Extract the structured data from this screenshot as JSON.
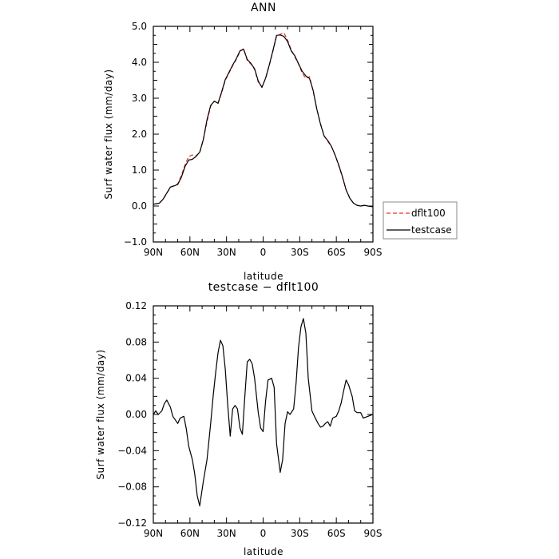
{
  "chart_data": [
    {
      "type": "line",
      "title": "ANN",
      "xlabel": "latitude",
      "ylabel": "Surf water flux (mm/day)",
      "xlim": [
        90,
        -90
      ],
      "ylim": [
        -1.0,
        5.0
      ],
      "xticks": [
        90,
        60,
        30,
        0,
        -30,
        -60,
        -90
      ],
      "xtick_labels": [
        "90N",
        "60N",
        "30N",
        "0",
        "30S",
        "60S",
        "90S"
      ],
      "yticks": [
        -1.0,
        0.0,
        1.0,
        2.0,
        3.0,
        4.0,
        5.0
      ],
      "ytick_labels": [
        "−1.0",
        "0.0",
        "1.0",
        "2.0",
        "3.0",
        "4.0",
        "5.0"
      ],
      "grid": false,
      "legend_position": "right",
      "series": [
        {
          "name": "dflt100",
          "color": "#e8302a",
          "dash": "dashed",
          "x": [
            90,
            85,
            82,
            79,
            76,
            73,
            70,
            67,
            64,
            61,
            58,
            55,
            52,
            49,
            46,
            43,
            40,
            37,
            34,
            31,
            28,
            25,
            22,
            19,
            16,
            13,
            10,
            7,
            4,
            1,
            -2,
            -5,
            -8,
            -11,
            -14,
            -17,
            -20,
            -23,
            -26,
            -29,
            -32,
            -35,
            -38,
            -41,
            -44,
            -47,
            -50,
            -53,
            -56,
            -59,
            -62,
            -65,
            -68,
            -71,
            -74,
            -77,
            -80,
            -83,
            -86,
            -90
          ],
          "y": [
            0.05,
            0.08,
            0.18,
            0.35,
            0.52,
            0.57,
            0.62,
            0.85,
            1.15,
            1.38,
            1.42,
            1.4,
            1.48,
            1.85,
            2.35,
            2.78,
            2.92,
            2.85,
            3.15,
            3.5,
            3.7,
            3.9,
            4.08,
            4.3,
            4.38,
            4.05,
            3.95,
            3.8,
            3.45,
            3.32,
            3.55,
            3.9,
            4.3,
            4.72,
            4.78,
            4.82,
            4.62,
            4.35,
            4.15,
            3.95,
            3.7,
            3.55,
            3.6,
            3.2,
            2.7,
            2.3,
            1.95,
            1.8,
            1.65,
            1.42,
            1.12,
            0.8,
            0.45,
            0.22,
            0.08,
            0.02,
            0.0,
            0.02,
            0.0,
            -0.02
          ]
        },
        {
          "name": "testcase",
          "color": "#000000",
          "dash": "solid",
          "x": [
            90,
            85,
            82,
            79,
            76,
            73,
            70,
            67,
            64,
            61,
            58,
            55,
            52,
            49,
            46,
            43,
            40,
            37,
            34,
            31,
            28,
            25,
            22,
            19,
            16,
            13,
            10,
            7,
            4,
            1,
            -2,
            -5,
            -8,
            -11,
            -14,
            -17,
            -20,
            -23,
            -26,
            -29,
            -32,
            -35,
            -38,
            -41,
            -44,
            -47,
            -50,
            -53,
            -56,
            -59,
            -62,
            -65,
            -68,
            -71,
            -74,
            -77,
            -80,
            -83,
            -86,
            -90
          ],
          "y": [
            0.05,
            0.08,
            0.19,
            0.36,
            0.53,
            0.56,
            0.6,
            0.8,
            1.1,
            1.28,
            1.3,
            1.38,
            1.5,
            1.85,
            2.4,
            2.8,
            2.92,
            2.86,
            3.18,
            3.52,
            3.72,
            3.92,
            4.1,
            4.32,
            4.36,
            4.08,
            3.97,
            3.82,
            3.48,
            3.3,
            3.56,
            3.92,
            4.32,
            4.75,
            4.76,
            4.72,
            4.58,
            4.32,
            4.18,
            3.96,
            3.75,
            3.62,
            3.55,
            3.22,
            2.7,
            2.28,
            1.95,
            1.82,
            1.66,
            1.42,
            1.14,
            0.82,
            0.45,
            0.22,
            0.08,
            0.02,
            0.0,
            0.02,
            0.0,
            -0.02
          ]
        }
      ]
    },
    {
      "type": "line",
      "title": "testcase − dflt100",
      "xlabel": "latitude",
      "ylabel": "Surf water flux (mm/day)",
      "xlim": [
        90,
        -90
      ],
      "ylim": [
        -0.12,
        0.12
      ],
      "xticks": [
        90,
        60,
        30,
        0,
        -30,
        -60,
        -90
      ],
      "xtick_labels": [
        "90N",
        "60N",
        "30N",
        "0",
        "30S",
        "60S",
        "90S"
      ],
      "yticks": [
        -0.12,
        -0.08,
        -0.04,
        0.0,
        0.04,
        0.08,
        0.12
      ],
      "ytick_labels": [
        "−0.12",
        "−0.08",
        "−0.04",
        "0.00",
        "0.04",
        "0.08",
        "0.12"
      ],
      "grid": false,
      "series": [
        {
          "color": "#000000",
          "dash": "solid",
          "x": [
            90,
            88,
            86,
            83,
            81,
            79,
            76,
            74,
            72,
            70,
            68,
            65,
            63,
            61,
            58,
            56,
            54,
            52,
            49,
            46,
            43,
            41,
            39,
            37,
            35,
            33,
            31,
            29,
            27,
            25,
            23,
            21,
            19,
            17,
            15,
            13,
            11,
            9,
            7,
            4,
            2,
            0,
            -2,
            -4,
            -7,
            -9,
            -11,
            -14,
            -16,
            -18,
            -20,
            -22,
            -25,
            -27,
            -29,
            -31,
            -33,
            -35,
            -37,
            -40,
            -42,
            -45,
            -47,
            -49,
            -51,
            -53,
            -55,
            -57,
            -60,
            -62,
            -64,
            -66,
            -68,
            -70,
            -73,
            -75,
            -77,
            -80,
            -82,
            -84,
            -86,
            -88,
            -90
          ],
          "y": [
            0.0,
            0.004,
            0.0,
            0.004,
            0.012,
            0.016,
            0.008,
            -0.002,
            -0.006,
            -0.01,
            -0.004,
            -0.002,
            -0.016,
            -0.035,
            -0.05,
            -0.066,
            -0.09,
            -0.101,
            -0.074,
            -0.05,
            -0.01,
            0.02,
            0.045,
            0.068,
            0.082,
            0.076,
            0.05,
            0.01,
            -0.024,
            0.006,
            0.01,
            0.006,
            -0.015,
            -0.022,
            0.02,
            0.058,
            0.061,
            0.056,
            0.04,
            0.002,
            -0.015,
            -0.019,
            0.015,
            0.038,
            0.04,
            0.03,
            -0.032,
            -0.064,
            -0.05,
            -0.01,
            0.003,
            0.0,
            0.006,
            0.035,
            0.074,
            0.097,
            0.106,
            0.09,
            0.04,
            0.004,
            -0.002,
            -0.01,
            -0.014,
            -0.013,
            -0.01,
            -0.008,
            -0.013,
            -0.004,
            -0.002,
            0.004,
            0.013,
            0.026,
            0.038,
            0.033,
            0.02,
            0.004,
            0.002,
            0.002,
            -0.004,
            -0.003,
            -0.002,
            -0.001,
            0.0
          ]
        }
      ]
    }
  ]
}
